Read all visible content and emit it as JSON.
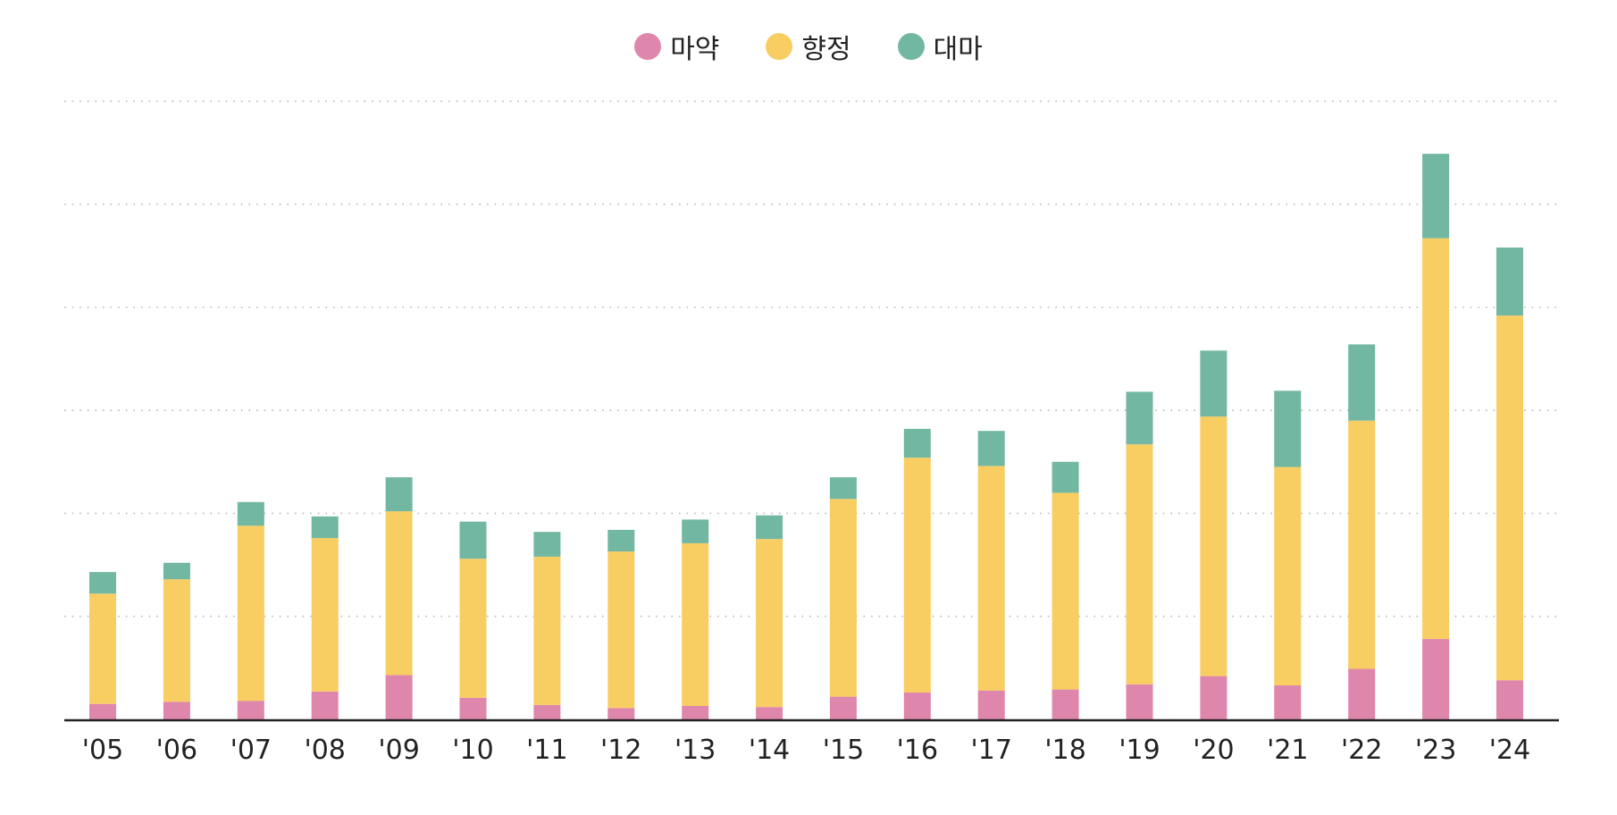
{
  "chart_data": {
    "type": "bar",
    "stacked": true,
    "title": "",
    "xlabel": "",
    "ylabel": "",
    "categories": [
      "'05",
      "'06",
      "'07",
      "'08",
      "'09",
      "'10",
      "'11",
      "'12",
      "'13",
      "'14",
      "'15",
      "'16",
      "'17",
      "'18",
      "'19",
      "'20",
      "'21",
      "'22",
      "'23",
      "'24"
    ],
    "series": [
      {
        "name": "마약",
        "color": "#de86ab",
        "values": [
          15,
          17,
          18,
          27,
          43,
          21,
          14,
          11,
          13,
          12,
          22,
          26,
          28,
          29,
          34,
          42,
          33,
          49,
          78,
          38
        ]
      },
      {
        "name": "향정",
        "color": "#f8cd62",
        "values": [
          107,
          119,
          170,
          149,
          159,
          135,
          144,
          152,
          158,
          163,
          192,
          228,
          218,
          191,
          233,
          252,
          212,
          241,
          389,
          354
        ]
      },
      {
        "name": "대마",
        "color": "#72b7a2",
        "values": [
          21,
          16,
          23,
          21,
          33,
          36,
          24,
          21,
          23,
          23,
          21,
          28,
          34,
          30,
          51,
          64,
          74,
          74,
          82,
          66
        ]
      }
    ],
    "ylim": [
      0,
      600
    ],
    "y_gridlines": [
      100,
      200,
      300,
      400,
      500,
      600
    ],
    "grid": true,
    "grid_style": "dotted",
    "y_tick_labels_shown": false,
    "legend_position": "top-center"
  }
}
